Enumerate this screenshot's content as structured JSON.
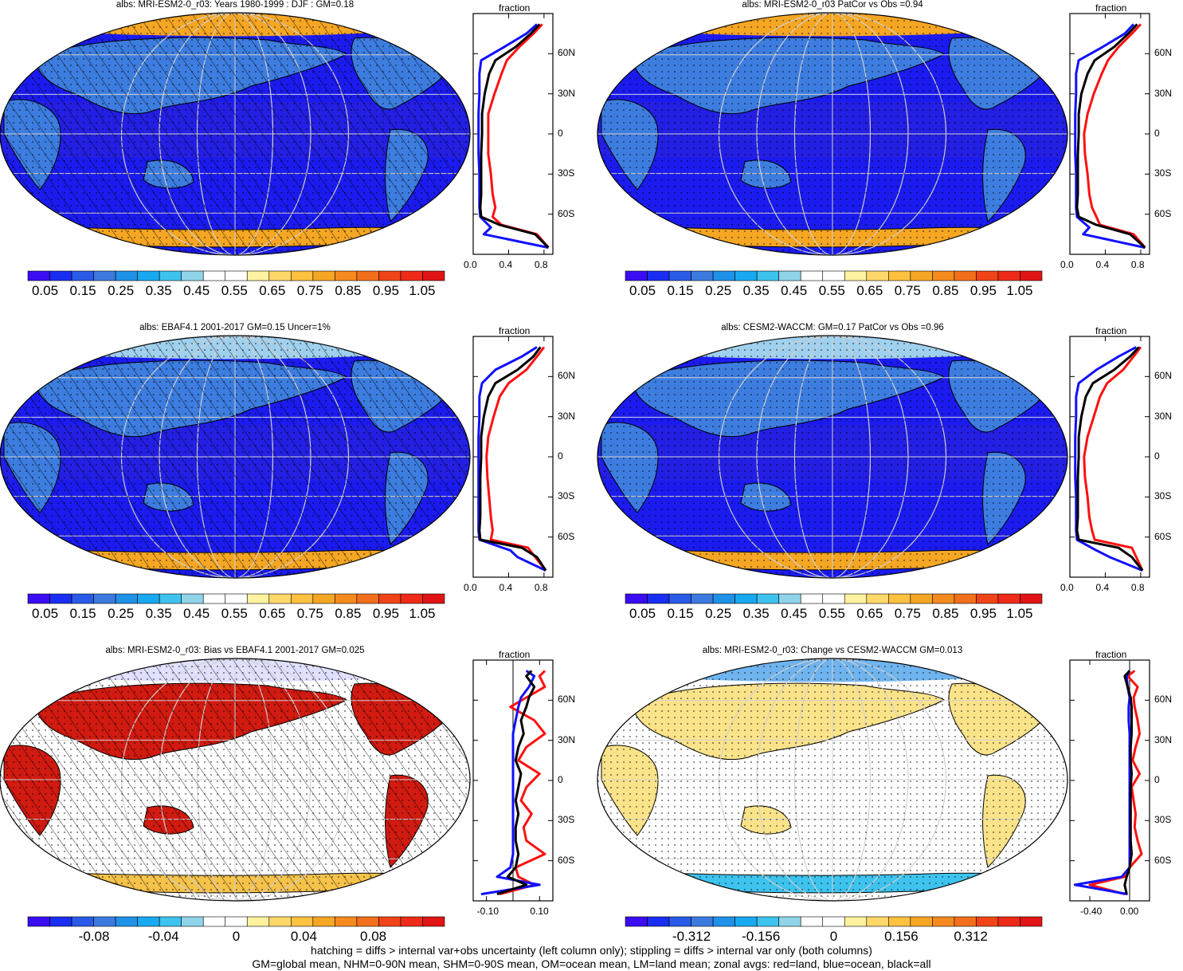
{
  "colors": {
    "ocean_deep": "#1b1bf0",
    "land_blue": "#3d7de0",
    "ice": "#f5a623",
    "red_line": "#ff1010",
    "blue_line": "#1010ff",
    "black_line": "#000000"
  },
  "colorbar_abs": {
    "colors": [
      "#3a0df2",
      "#1a2df2",
      "#2a5ae8",
      "#3c7ae0",
      "#1f92e8",
      "#18a9f0",
      "#3ec3ee",
      "#90d4ea",
      "#ffffff",
      "#ffffff",
      "#fff2a0",
      "#ffd86a",
      "#ffc140",
      "#f5a623",
      "#f58b1e",
      "#f26f1b",
      "#f04418",
      "#ee2a18",
      "#e01414"
    ],
    "labels": [
      "0.05",
      "0.15",
      "0.25",
      "0.35",
      "0.45",
      "0.55",
      "0.65",
      "0.75",
      "0.85",
      "0.95",
      "1.05"
    ]
  },
  "colorbar_bias": {
    "colors": [
      "#3a0df2",
      "#1a2df2",
      "#2a5ae8",
      "#3c7ae0",
      "#1f92e8",
      "#18a9f0",
      "#3ec3ee",
      "#90d4ea",
      "#ffffff",
      "#ffffff",
      "#fff2a0",
      "#ffd86a",
      "#ffc140",
      "#f5a623",
      "#f58b1e",
      "#f26f1b",
      "#f04418",
      "#ee2a18",
      "#e01414"
    ],
    "labels": [
      "-0.08",
      "-0.04",
      "0",
      "0.04",
      "0.08"
    ]
  },
  "colorbar_change": {
    "colors": [
      "#3a0df2",
      "#1a2df2",
      "#2a5ae8",
      "#3c7ae0",
      "#1f92e8",
      "#18a9f0",
      "#3ec3ee",
      "#90d4ea",
      "#ffffff",
      "#ffffff",
      "#fff2a0",
      "#ffd86a",
      "#ffc140",
      "#f5a623",
      "#f58b1e",
      "#f26f1b",
      "#f04418",
      "#ee2a18",
      "#e01414"
    ],
    "labels": [
      "-0.312",
      "-0.156",
      "0",
      "0.156",
      "0.312"
    ]
  },
  "zonal_axis": {
    "top_label": "fraction",
    "lat_labels": [
      "60N",
      "30N",
      "0",
      "30S",
      "60S"
    ]
  },
  "footer": {
    "line1": "hatching = diffs > internal var+obs uncertainty (left column only); stippling = diffs > internal var only (both columns)",
    "line2": "GM=global mean, NHM=0-90N mean, SHM=0-90S mean, OM=ocean mean, LM=land mean; zonal avgs: red=land, blue=ocean, black=all"
  },
  "chart_data": [
    {
      "type": "line",
      "panel": "top-left",
      "title": "albs: MRI-ESM2-0_r03: Years 1980-1999 : DJF : GM=0.18",
      "xlim": [
        0,
        0.9
      ],
      "xticks": [
        "0.0",
        "0.4",
        "0.8"
      ],
      "ylim": [
        -90,
        90
      ],
      "series": [
        {
          "color": "red",
          "lat": [
            -85,
            -75,
            -68,
            -62,
            -55,
            -45,
            -30,
            -15,
            0,
            15,
            30,
            45,
            55,
            65,
            75,
            82
          ],
          "values": [
            0.85,
            0.72,
            0.32,
            0.22,
            0.25,
            0.22,
            0.2,
            0.17,
            0.17,
            0.17,
            0.24,
            0.32,
            0.38,
            0.52,
            0.68,
            0.78
          ]
        },
        {
          "color": "blue",
          "lat": [
            -85,
            -75,
            -70,
            -62,
            -55,
            -45,
            -30,
            -15,
            0,
            15,
            30,
            45,
            55,
            65,
            75,
            82
          ],
          "values": [
            0.85,
            0.12,
            0.2,
            0.08,
            0.07,
            0.07,
            0.07,
            0.06,
            0.06,
            0.06,
            0.07,
            0.07,
            0.09,
            0.35,
            0.6,
            0.72
          ]
        },
        {
          "color": "black",
          "lat": [
            -85,
            -75,
            -68,
            -62,
            -55,
            -45,
            -30,
            -15,
            0,
            15,
            30,
            45,
            55,
            65,
            75,
            82
          ],
          "values": [
            0.85,
            0.7,
            0.3,
            0.09,
            0.08,
            0.09,
            0.09,
            0.09,
            0.1,
            0.1,
            0.13,
            0.18,
            0.25,
            0.48,
            0.65,
            0.75
          ]
        }
      ]
    },
    {
      "type": "line",
      "panel": "top-right",
      "title": "albs: MRI-ESM2-0_r03 PatCor vs Obs =0.94",
      "xlim": [
        0,
        0.9
      ],
      "xticks": [
        "0.0",
        "0.4",
        "0.8"
      ],
      "ylim": [
        -90,
        90
      ],
      "series": [
        {
          "color": "red",
          "lat": [
            -85,
            -75,
            -68,
            -62,
            -55,
            -45,
            -30,
            -15,
            0,
            15,
            30,
            45,
            55,
            65,
            75,
            82
          ],
          "values": [
            0.85,
            0.72,
            0.34,
            0.3,
            0.25,
            0.22,
            0.2,
            0.17,
            0.16,
            0.2,
            0.27,
            0.36,
            0.43,
            0.55,
            0.7,
            0.8
          ]
        },
        {
          "color": "blue",
          "lat": [
            -85,
            -75,
            -70,
            -62,
            -55,
            -45,
            -30,
            -15,
            0,
            15,
            30,
            45,
            55,
            65,
            75,
            82
          ],
          "values": [
            0.85,
            0.15,
            0.22,
            0.08,
            0.07,
            0.07,
            0.07,
            0.06,
            0.06,
            0.06,
            0.07,
            0.07,
            0.1,
            0.37,
            0.62,
            0.72
          ]
        },
        {
          "color": "black",
          "lat": [
            -85,
            -75,
            -68,
            -62,
            -55,
            -45,
            -30,
            -15,
            0,
            15,
            30,
            45,
            55,
            65,
            75,
            82
          ],
          "values": [
            0.85,
            0.68,
            0.3,
            0.1,
            0.08,
            0.09,
            0.09,
            0.09,
            0.1,
            0.1,
            0.13,
            0.2,
            0.28,
            0.5,
            0.66,
            0.76
          ]
        }
      ]
    },
    {
      "type": "line",
      "panel": "middle-left",
      "title": "albs: EBAF4.1 2001-2017 GM=0.15 Uncer=1%",
      "xlim": [
        0,
        0.9
      ],
      "xticks": [
        "0.0",
        "0.4",
        "0.8"
      ],
      "ylim": [
        -90,
        90
      ],
      "series": [
        {
          "color": "red",
          "lat": [
            -85,
            -75,
            -68,
            -62,
            -55,
            -45,
            -30,
            -15,
            0,
            15,
            30,
            45,
            55,
            65,
            75,
            82
          ],
          "values": [
            0.82,
            0.7,
            0.62,
            0.2,
            0.22,
            0.2,
            0.18,
            0.16,
            0.15,
            0.17,
            0.23,
            0.3,
            0.4,
            0.6,
            0.72,
            0.8
          ]
        },
        {
          "color": "blue",
          "lat": [
            -85,
            -75,
            -70,
            -62,
            -55,
            -45,
            -30,
            -15,
            0,
            15,
            30,
            45,
            55,
            65,
            75,
            82
          ],
          "values": [
            0.82,
            0.5,
            0.42,
            0.07,
            0.06,
            0.06,
            0.06,
            0.06,
            0.06,
            0.06,
            0.07,
            0.07,
            0.1,
            0.25,
            0.55,
            0.72
          ]
        },
        {
          "color": "black",
          "lat": [
            -85,
            -75,
            -68,
            -62,
            -55,
            -45,
            -30,
            -15,
            0,
            15,
            30,
            45,
            55,
            65,
            75,
            82
          ],
          "values": [
            0.82,
            0.72,
            0.55,
            0.08,
            0.07,
            0.08,
            0.08,
            0.08,
            0.09,
            0.09,
            0.12,
            0.17,
            0.25,
            0.5,
            0.68,
            0.76
          ]
        }
      ]
    },
    {
      "type": "line",
      "panel": "middle-right",
      "title": "albs: CESM2-WACCM: GM=0.17 PatCor vs Obs =0.96",
      "xlim": [
        0,
        0.9
      ],
      "xticks": [
        "0.0",
        "0.4",
        "0.8"
      ],
      "ylim": [
        -90,
        90
      ],
      "series": [
        {
          "color": "red",
          "lat": [
            -85,
            -75,
            -68,
            -62,
            -55,
            -45,
            -30,
            -15,
            0,
            15,
            30,
            45,
            55,
            65,
            75,
            82
          ],
          "values": [
            0.82,
            0.75,
            0.7,
            0.28,
            0.25,
            0.22,
            0.2,
            0.17,
            0.16,
            0.2,
            0.27,
            0.34,
            0.42,
            0.6,
            0.72,
            0.8
          ]
        },
        {
          "color": "blue",
          "lat": [
            -85,
            -75,
            -70,
            -62,
            -55,
            -45,
            -30,
            -15,
            0,
            15,
            30,
            45,
            55,
            65,
            75,
            82
          ],
          "values": [
            0.82,
            0.45,
            0.3,
            0.08,
            0.07,
            0.07,
            0.07,
            0.06,
            0.06,
            0.06,
            0.07,
            0.07,
            0.1,
            0.3,
            0.55,
            0.75
          ]
        },
        {
          "color": "black",
          "lat": [
            -85,
            -75,
            -68,
            -62,
            -55,
            -45,
            -30,
            -15,
            0,
            15,
            30,
            45,
            55,
            65,
            75,
            82
          ],
          "values": [
            0.82,
            0.7,
            0.55,
            0.1,
            0.08,
            0.09,
            0.09,
            0.09,
            0.1,
            0.1,
            0.13,
            0.18,
            0.26,
            0.5,
            0.68,
            0.78
          ]
        }
      ]
    },
    {
      "type": "line",
      "panel": "bottom-left",
      "title": "albs: MRI-ESM2-0_r03: Bias vs EBAF4.1 2001-2017 GM=0.025",
      "xlim": [
        -0.15,
        0.15
      ],
      "xticks": [
        "-0.10",
        "0.10"
      ],
      "ylim": [
        -90,
        90
      ],
      "series": [
        {
          "color": "red",
          "lat": [
            -85,
            -78,
            -72,
            -65,
            -55,
            -45,
            -35,
            -25,
            -15,
            -5,
            5,
            15,
            25,
            35,
            45,
            55,
            62,
            70,
            78,
            82
          ],
          "values": [
            -0.05,
            0.08,
            0.02,
            0.01,
            0.12,
            0.05,
            0.04,
            0.07,
            0.03,
            0.05,
            0.1,
            0.02,
            0.05,
            0.12,
            0.08,
            -0.01,
            0.05,
            0.12,
            0.1,
            0.12
          ]
        },
        {
          "color": "blue",
          "lat": [
            -85,
            -78,
            -72,
            -65,
            -55,
            -45,
            -35,
            -25,
            -15,
            -5,
            5,
            15,
            25,
            35,
            45,
            55,
            62,
            70,
            78,
            82
          ],
          "values": [
            -0.12,
            0.1,
            -0.06,
            -0.01,
            0.0,
            0.0,
            0.0,
            0.0,
            0.0,
            0.0,
            0.0,
            0.0,
            0.0,
            0.0,
            0.01,
            0.02,
            0.03,
            0.06,
            0.08,
            0.05
          ]
        },
        {
          "color": "black",
          "lat": [
            -85,
            -78,
            -72,
            -65,
            -55,
            -45,
            -35,
            -25,
            -15,
            -5,
            5,
            15,
            25,
            35,
            45,
            55,
            62,
            70,
            78,
            82
          ],
          "values": [
            -0.06,
            0.05,
            -0.02,
            0.01,
            0.02,
            0.01,
            0.01,
            0.02,
            0.01,
            0.02,
            0.03,
            0.01,
            0.02,
            0.04,
            0.03,
            0.05,
            0.06,
            0.08,
            0.05,
            0.07
          ]
        }
      ]
    },
    {
      "type": "line",
      "panel": "bottom-right",
      "title": "albs: MRI-ESM2-0_r03: Change vs CESM2-WACCM GM=0.013",
      "xlim": [
        -0.6,
        0.2
      ],
      "xticks": [
        "-0.40",
        "0.00"
      ],
      "ylim": [
        -90,
        90
      ],
      "series": [
        {
          "color": "red",
          "lat": [
            -85,
            -78,
            -72,
            -65,
            -55,
            -45,
            -35,
            -25,
            -15,
            -5,
            5,
            15,
            25,
            35,
            45,
            55,
            62,
            70,
            78,
            82
          ],
          "values": [
            -0.05,
            -0.4,
            -0.05,
            0.0,
            0.12,
            0.08,
            0.05,
            0.06,
            0.04,
            0.02,
            0.1,
            0.03,
            0.06,
            0.1,
            0.08,
            0.05,
            0.04,
            0.08,
            -0.02,
            0.05
          ]
        },
        {
          "color": "blue",
          "lat": [
            -85,
            -78,
            -72,
            -65,
            -55,
            -45,
            -35,
            -25,
            -15,
            -5,
            5,
            15,
            25,
            35,
            45,
            55,
            62,
            70,
            78,
            82
          ],
          "values": [
            -0.02,
            -0.55,
            -0.08,
            0.0,
            0.0,
            0.0,
            0.0,
            0.0,
            0.0,
            0.0,
            0.0,
            0.0,
            0.0,
            0.0,
            -0.01,
            -0.01,
            0.0,
            -0.02,
            -0.03,
            0.0
          ]
        },
        {
          "color": "black",
          "lat": [
            -85,
            -78,
            -72,
            -65,
            -55,
            -45,
            -35,
            -25,
            -15,
            -5,
            5,
            15,
            25,
            35,
            45,
            55,
            62,
            70,
            78,
            82
          ],
          "values": [
            -0.03,
            -0.05,
            -0.03,
            0.0,
            0.02,
            0.01,
            0.01,
            0.01,
            0.01,
            0.01,
            0.02,
            0.01,
            0.01,
            0.02,
            0.02,
            0.02,
            0.01,
            -0.02,
            -0.05,
            0.0
          ]
        }
      ]
    }
  ]
}
